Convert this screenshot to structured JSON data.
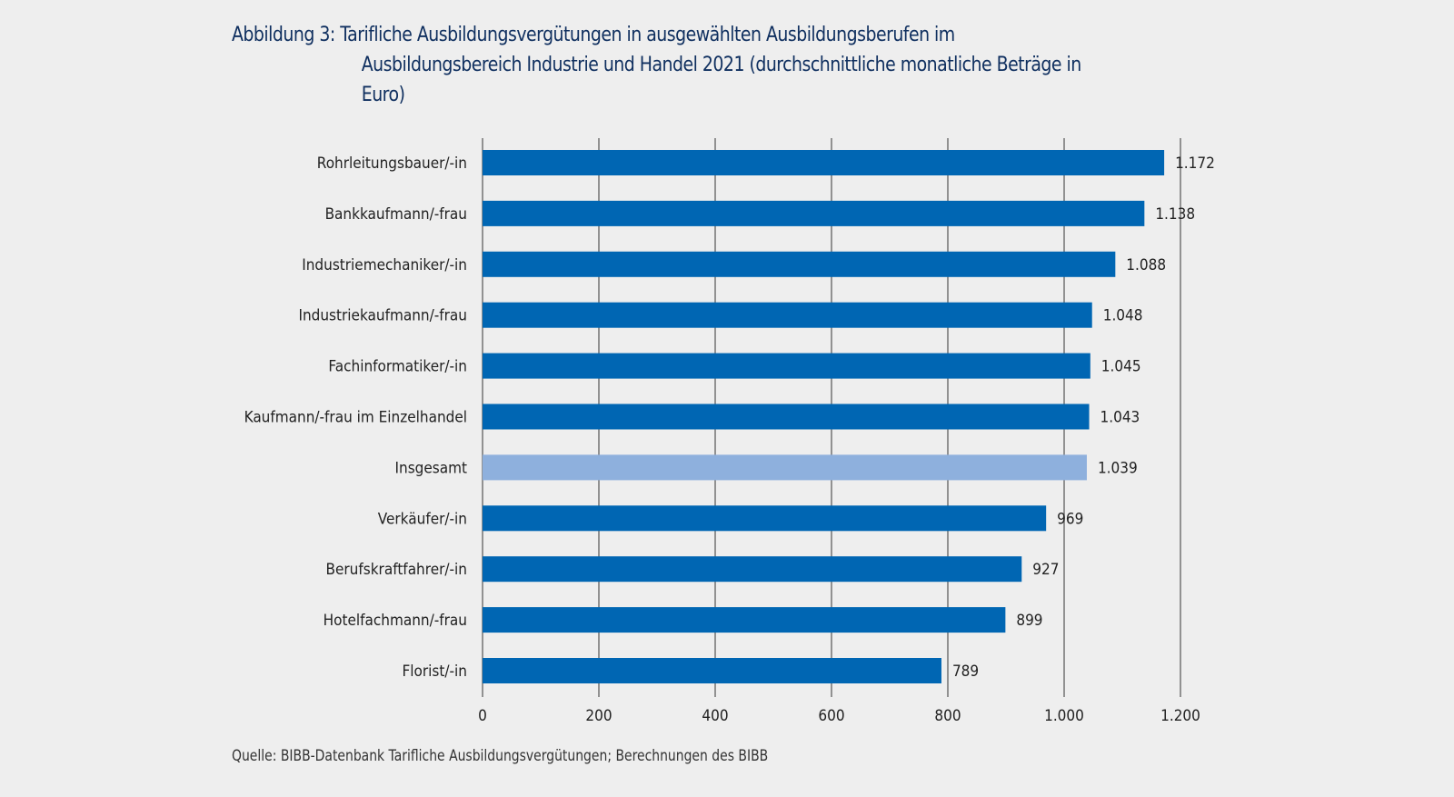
{
  "chart_data": {
    "type": "bar",
    "orientation": "horizontal",
    "title": {
      "prefix": "Abbildung 3:",
      "lines": [
        "Tarifliche Ausbildungsvergütungen in ausgewählten Ausbildungsberufen im",
        "Ausbildungsbereich Industrie und Handel 2021 (durchschnittliche monatliche Beträge in",
        "Euro)"
      ]
    },
    "categories": [
      "Rohrleitungsbauer/-in",
      "Bankkaufmann/-frau",
      "Industriemechaniker/-in",
      "Industriekaufmann/-frau",
      "Fachinformatiker/-in",
      "Kaufmann/-frau im Einzelhandel",
      "Insgesamt",
      "Verkäufer/-in",
      "Berufskraftfahrer/-in",
      "Hotelfachmann/-frau",
      "Florist/-in"
    ],
    "values": [
      1172,
      1138,
      1088,
      1048,
      1045,
      1043,
      1039,
      969,
      927,
      899,
      789
    ],
    "value_labels": [
      "1.172",
      "1.138",
      "1.088",
      "1.048",
      "1.045",
      "1.043",
      "1.039",
      "969",
      "927",
      "899",
      "789"
    ],
    "highlight_category": "Insgesamt",
    "colors": {
      "bar": "#0066b3",
      "highlight": "#8eb0dd",
      "grid": "#7a7a7a",
      "title": "#0f2f5f"
    },
    "xlim": [
      0,
      1200
    ],
    "xticks": [
      0,
      200,
      400,
      600,
      800,
      1000,
      1200
    ],
    "xtick_labels": [
      "0",
      "200",
      "400",
      "600",
      "800",
      "1.000",
      "1.200"
    ],
    "xlabel": "",
    "ylabel": "",
    "grid": true,
    "legend": "none",
    "source": "Quelle: BIBB-Datenbank Tarifliche Ausbildungsvergütungen; Berechnungen des BIBB"
  }
}
